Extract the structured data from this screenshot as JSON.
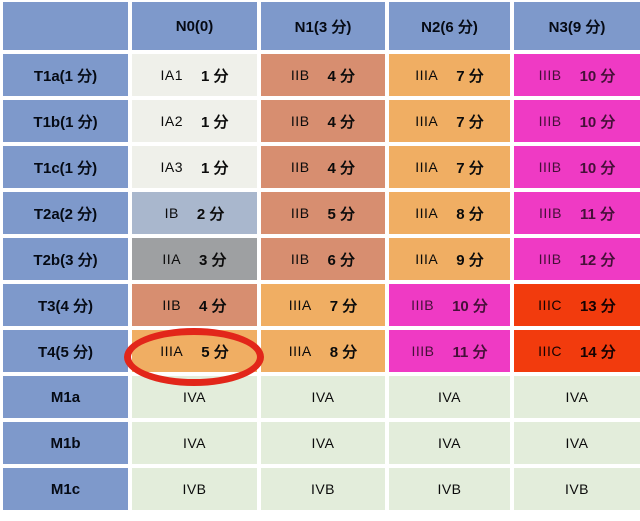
{
  "colors": {
    "header_blue": "#7e99cb",
    "stage_ia": "#eff0ea",
    "stage_ib": "#a9b7cd",
    "stage_iia": "#9ea0a2",
    "stage_iib": "#d78e70",
    "stage_iiia": "#f0ae63",
    "stage_iiib": "#ef3ac4",
    "stage_iiic": "#f23b0d",
    "stage_iv": "#e3eddb",
    "annotation_red": "#e2261a",
    "background": "#ffffff"
  },
  "chart_data": {
    "type": "table",
    "title": "",
    "corner_label": "",
    "columns": [
      "N0(0)",
      "N1(3 分)",
      "N2(6 分)",
      "N3(9 分)"
    ],
    "rows": [
      {
        "header": "T1a(1 分)",
        "cells": [
          {
            "stage": "IA1",
            "score": "1 分"
          },
          {
            "stage": "IIB",
            "score": "4 分"
          },
          {
            "stage": "IIIA",
            "score": "7 分"
          },
          {
            "stage": "IIIB",
            "score": "10 分"
          }
        ]
      },
      {
        "header": "T1b(1 分)",
        "cells": [
          {
            "stage": "IA2",
            "score": "1 分"
          },
          {
            "stage": "IIB",
            "score": "4 分"
          },
          {
            "stage": "IIIA",
            "score": "7 分"
          },
          {
            "stage": "IIIB",
            "score": "10 分"
          }
        ]
      },
      {
        "header": "T1c(1 分)",
        "cells": [
          {
            "stage": "IA3",
            "score": "1 分"
          },
          {
            "stage": "IIB",
            "score": "4 分"
          },
          {
            "stage": "IIIA",
            "score": "7 分"
          },
          {
            "stage": "IIIB",
            "score": "10 分"
          }
        ]
      },
      {
        "header": "T2a(2 分)",
        "cells": [
          {
            "stage": "IB",
            "score": "2 分"
          },
          {
            "stage": "IIB",
            "score": "5 分"
          },
          {
            "stage": "IIIA",
            "score": "8 分"
          },
          {
            "stage": "IIIB",
            "score": "11 分"
          }
        ]
      },
      {
        "header": "T2b(3 分)",
        "cells": [
          {
            "stage": "IIA",
            "score": "3 分"
          },
          {
            "stage": "IIB",
            "score": "6 分"
          },
          {
            "stage": "IIIA",
            "score": "9 分"
          },
          {
            "stage": "IIIB",
            "score": "12 分"
          }
        ]
      },
      {
        "header": "T3(4 分)",
        "cells": [
          {
            "stage": "IIB",
            "score": "4 分"
          },
          {
            "stage": "IIIA",
            "score": "7 分"
          },
          {
            "stage": "IIIB",
            "score": "10 分"
          },
          {
            "stage": "IIIC",
            "score": "13 分"
          }
        ]
      },
      {
        "header": "T4(5 分)",
        "cells": [
          {
            "stage": "IIIA",
            "score": "5 分"
          },
          {
            "stage": "IIIA",
            "score": "8 分"
          },
          {
            "stage": "IIIB",
            "score": "11 分"
          },
          {
            "stage": "IIIC",
            "score": "14 分"
          }
        ]
      },
      {
        "header": "M1a",
        "cells": [
          {
            "stage": "IVA",
            "score": ""
          },
          {
            "stage": "IVA",
            "score": ""
          },
          {
            "stage": "IVA",
            "score": ""
          },
          {
            "stage": "IVA",
            "score": ""
          }
        ]
      },
      {
        "header": "M1b",
        "cells": [
          {
            "stage": "IVA",
            "score": ""
          },
          {
            "stage": "IVA",
            "score": ""
          },
          {
            "stage": "IVA",
            "score": ""
          },
          {
            "stage": "IVA",
            "score": ""
          }
        ]
      },
      {
        "header": "M1c",
        "cells": [
          {
            "stage": "IVB",
            "score": ""
          },
          {
            "stage": "IVB",
            "score": ""
          },
          {
            "stage": "IVB",
            "score": ""
          },
          {
            "stage": "IVB",
            "score": ""
          }
        ]
      }
    ],
    "annotations": [
      {
        "shape": "ellipse",
        "marks_cell": "T4(5 分) × N0(0)",
        "marked_value": "IIIA 5 分",
        "color": "#e2261a"
      }
    ],
    "legend_position": "none",
    "grid": "white gaps between colored cells"
  }
}
